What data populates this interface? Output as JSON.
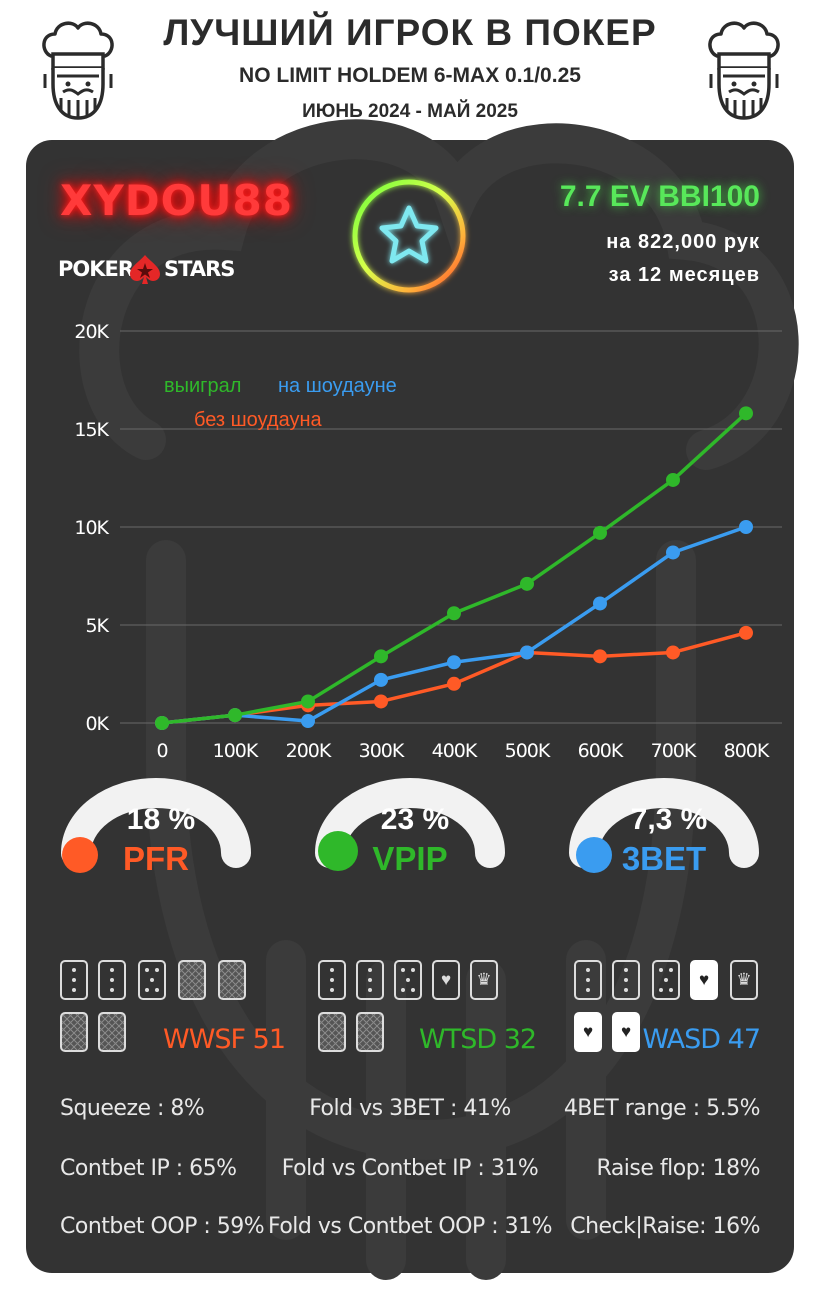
{
  "header": {
    "title": "ЛУЧШИЙ ИГРОК В ПОКЕР",
    "subtitle": "NO LIMIT HOLDEM 6-MAX 0.1/0.25",
    "period": "ИЮНЬ 2024 - МАЙ 2025"
  },
  "player": {
    "nick": "XYDOU88",
    "room_part1": "POKER",
    "room_part2": "STARS",
    "ev": "7.7 EV BBI100",
    "hands": "на 822,000 рук",
    "months": "за  12 месяцев"
  },
  "colors": {
    "background": "#333333",
    "green": "#2fb82a",
    "blue": "#3a9cf0",
    "orange": "#ff5a26",
    "nick_red": "#ff3a3a"
  },
  "chart_data": {
    "type": "line",
    "x": [
      "0",
      "100K",
      "200K",
      "300K",
      "400K",
      "500K",
      "600K",
      "700K",
      "800K"
    ],
    "y_ticks": [
      "0K",
      "5K",
      "10K",
      "15K",
      "20K"
    ],
    "ylim": [
      0,
      20000
    ],
    "grid": true,
    "legend": "top-left",
    "series": [
      {
        "name": "выиграл",
        "color": "#2fb82a",
        "values": [
          0,
          400,
          1100,
          3400,
          5600,
          7100,
          9700,
          12400,
          15800
        ]
      },
      {
        "name": "на шоудауне",
        "color": "#3a9cf0",
        "values": [
          0,
          400,
          100,
          2200,
          3100,
          3600,
          6100,
          8700,
          10000
        ]
      },
      {
        "name": "без шоудауна",
        "color": "#ff5a26",
        "values": [
          0,
          400,
          900,
          1100,
          2000,
          3600,
          3400,
          3600,
          4600
        ]
      }
    ]
  },
  "gauges": [
    {
      "value": "18 %",
      "label": "PFR",
      "color": "#ff5a26",
      "fraction": 0.18
    },
    {
      "value": "23 %",
      "label": "VPIP",
      "color": "#2fb82a",
      "fraction": 0.23
    },
    {
      "value": "7,3 %",
      "label": "3BET",
      "color": "#3a9cf0",
      "fraction": 0.073
    }
  ],
  "card_stats": [
    {
      "label": "WWSF 51",
      "color": "#ff5a26"
    },
    {
      "label": "WTSD 32",
      "color": "#2fb82a"
    },
    {
      "label": "WASD 47",
      "color": "#3a9cf0"
    }
  ],
  "stats": {
    "left": [
      "Squeeze : 8%",
      "Contbet IP : 65%",
      "Contbet OOP : 59%"
    ],
    "middle": [
      "Fold vs 3BET : 41%",
      "Fold vs Contbet IP : 31%",
      "Fold vs Contbet OOP : 31%"
    ],
    "right": [
      "4BET range : 5.5%",
      "Raise flop: 18%",
      "Check|Raise: 16%"
    ]
  }
}
